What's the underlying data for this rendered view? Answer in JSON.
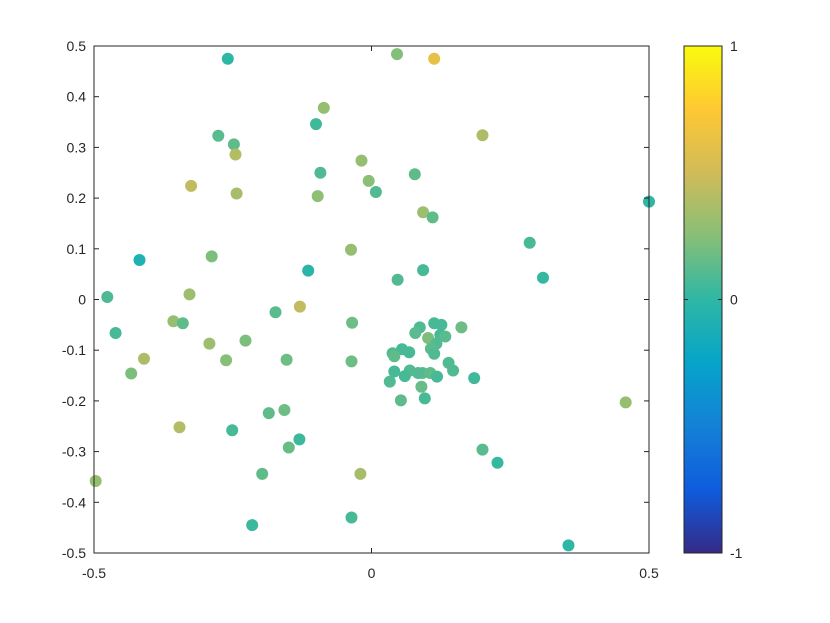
{
  "chart_data": {
    "type": "scatter",
    "title": "",
    "xlabel": "",
    "ylabel": "",
    "xlim": [
      -0.5,
      0.5
    ],
    "ylim": [
      -0.5,
      0.5
    ],
    "xticks": [
      "-0.5",
      "0",
      "0.5"
    ],
    "yticks": [
      "0.5",
      "0.4",
      "0.3",
      "0.2",
      "0.1",
      "0",
      "-0.1",
      "-0.2",
      "-0.3",
      "-0.4",
      "-0.5"
    ],
    "grid": false,
    "box": true,
    "colormap": "parula",
    "colorbar": {
      "limits": [
        -1,
        1
      ],
      "ticks": [
        1,
        0,
        -1
      ],
      "tick_labels": [
        "1",
        "0",
        "-1"
      ],
      "colors": [
        "#352a87",
        "#0f5cdd",
        "#1481d6",
        "#06a4ca",
        "#2eb7a4",
        "#87bf77",
        "#d1bb59",
        "#fec832",
        "#f9fb0e"
      ]
    },
    "points": [
      {
        "x": -0.259,
        "y": 0.475,
        "c": 0.0
      },
      {
        "x": 0.046,
        "y": 0.484,
        "c": 0.24
      },
      {
        "x": 0.113,
        "y": 0.475,
        "c": 0.62
      },
      {
        "x": -0.086,
        "y": 0.378,
        "c": 0.3
      },
      {
        "x": -0.1,
        "y": 0.346,
        "c": 0.05
      },
      {
        "x": 0.2,
        "y": 0.324,
        "c": 0.38
      },
      {
        "x": -0.276,
        "y": 0.323,
        "c": 0.12
      },
      {
        "x": -0.248,
        "y": 0.306,
        "c": 0.14
      },
      {
        "x": -0.245,
        "y": 0.286,
        "c": 0.4
      },
      {
        "x": -0.018,
        "y": 0.274,
        "c": 0.3
      },
      {
        "x": -0.092,
        "y": 0.25,
        "c": 0.1
      },
      {
        "x": 0.078,
        "y": 0.247,
        "c": 0.14
      },
      {
        "x": -0.005,
        "y": 0.234,
        "c": 0.26
      },
      {
        "x": -0.325,
        "y": 0.224,
        "c": 0.45
      },
      {
        "x": 0.008,
        "y": 0.212,
        "c": 0.1
      },
      {
        "x": -0.243,
        "y": 0.209,
        "c": 0.36
      },
      {
        "x": -0.097,
        "y": 0.204,
        "c": 0.28
      },
      {
        "x": 0.5,
        "y": 0.193,
        "c": 0.0
      },
      {
        "x": 0.093,
        "y": 0.172,
        "c": 0.32
      },
      {
        "x": 0.11,
        "y": 0.162,
        "c": 0.14
      },
      {
        "x": 0.285,
        "y": 0.112,
        "c": 0.07
      },
      {
        "x": -0.037,
        "y": 0.098,
        "c": 0.3
      },
      {
        "x": -0.418,
        "y": 0.078,
        "c": -0.08
      },
      {
        "x": -0.288,
        "y": 0.085,
        "c": 0.22
      },
      {
        "x": 0.093,
        "y": 0.058,
        "c": 0.07
      },
      {
        "x": -0.114,
        "y": 0.057,
        "c": -0.02
      },
      {
        "x": 0.047,
        "y": 0.039,
        "c": 0.1
      },
      {
        "x": 0.309,
        "y": 0.043,
        "c": 0.02
      },
      {
        "x": -0.476,
        "y": 0.005,
        "c": 0.09
      },
      {
        "x": -0.328,
        "y": 0.01,
        "c": 0.32
      },
      {
        "x": -0.129,
        "y": -0.014,
        "c": 0.45
      },
      {
        "x": -0.173,
        "y": -0.025,
        "c": 0.12
      },
      {
        "x": -0.357,
        "y": -0.043,
        "c": 0.3
      },
      {
        "x": -0.34,
        "y": -0.047,
        "c": 0.14
      },
      {
        "x": -0.035,
        "y": -0.046,
        "c": 0.18
      },
      {
        "x": 0.113,
        "y": -0.047,
        "c": 0.07
      },
      {
        "x": 0.126,
        "y": -0.05,
        "c": 0.07
      },
      {
        "x": 0.162,
        "y": -0.055,
        "c": 0.18
      },
      {
        "x": 0.087,
        "y": -0.055,
        "c": 0.09
      },
      {
        "x": -0.461,
        "y": -0.066,
        "c": 0.07
      },
      {
        "x": 0.079,
        "y": -0.066,
        "c": 0.12
      },
      {
        "x": 0.124,
        "y": -0.07,
        "c": 0.07
      },
      {
        "x": 0.133,
        "y": -0.073,
        "c": 0.12
      },
      {
        "x": 0.102,
        "y": -0.076,
        "c": 0.22
      },
      {
        "x": -0.227,
        "y": -0.081,
        "c": 0.22
      },
      {
        "x": 0.117,
        "y": -0.087,
        "c": 0.1
      },
      {
        "x": -0.292,
        "y": -0.087,
        "c": 0.32
      },
      {
        "x": 0.107,
        "y": -0.097,
        "c": 0.12
      },
      {
        "x": 0.055,
        "y": -0.098,
        "c": 0.07
      },
      {
        "x": 0.068,
        "y": -0.104,
        "c": 0.07
      },
      {
        "x": 0.113,
        "y": -0.107,
        "c": 0.1
      },
      {
        "x": 0.038,
        "y": -0.106,
        "c": 0.1
      },
      {
        "x": 0.041,
        "y": -0.112,
        "c": 0.14
      },
      {
        "x": -0.41,
        "y": -0.117,
        "c": 0.38
      },
      {
        "x": -0.262,
        "y": -0.12,
        "c": 0.25
      },
      {
        "x": -0.153,
        "y": -0.119,
        "c": 0.18
      },
      {
        "x": -0.036,
        "y": -0.122,
        "c": 0.18
      },
      {
        "x": 0.139,
        "y": -0.125,
        "c": 0.1
      },
      {
        "x": 0.041,
        "y": -0.142,
        "c": 0.07
      },
      {
        "x": 0.069,
        "y": -0.14,
        "c": 0.1
      },
      {
        "x": 0.147,
        "y": -0.14,
        "c": 0.1
      },
      {
        "x": 0.092,
        "y": -0.145,
        "c": 0.12
      },
      {
        "x": 0.106,
        "y": -0.145,
        "c": 0.14
      },
      {
        "x": 0.084,
        "y": -0.145,
        "c": 0.1
      },
      {
        "x": -0.433,
        "y": -0.146,
        "c": 0.22
      },
      {
        "x": 0.06,
        "y": -0.151,
        "c": 0.07
      },
      {
        "x": 0.118,
        "y": -0.152,
        "c": 0.07
      },
      {
        "x": 0.185,
        "y": -0.155,
        "c": 0.05
      },
      {
        "x": 0.033,
        "y": -0.162,
        "c": 0.1
      },
      {
        "x": 0.09,
        "y": -0.172,
        "c": 0.16
      },
      {
        "x": 0.053,
        "y": -0.199,
        "c": 0.14
      },
      {
        "x": 0.096,
        "y": -0.195,
        "c": 0.07
      },
      {
        "x": 0.458,
        "y": -0.203,
        "c": 0.3
      },
      {
        "x": -0.157,
        "y": -0.218,
        "c": 0.18
      },
      {
        "x": -0.185,
        "y": -0.224,
        "c": 0.14
      },
      {
        "x": -0.346,
        "y": -0.252,
        "c": 0.4
      },
      {
        "x": -0.251,
        "y": -0.258,
        "c": 0.07
      },
      {
        "x": -0.13,
        "y": -0.276,
        "c": 0.04
      },
      {
        "x": -0.149,
        "y": -0.292,
        "c": 0.16
      },
      {
        "x": 0.2,
        "y": -0.296,
        "c": 0.12
      },
      {
        "x": 0.227,
        "y": -0.322,
        "c": 0.02
      },
      {
        "x": -0.197,
        "y": -0.344,
        "c": 0.14
      },
      {
        "x": -0.02,
        "y": -0.344,
        "c": 0.36
      },
      {
        "x": -0.497,
        "y": -0.358,
        "c": 0.3
      },
      {
        "x": -0.036,
        "y": -0.43,
        "c": 0.07
      },
      {
        "x": -0.215,
        "y": -0.445,
        "c": 0.04
      },
      {
        "x": 0.355,
        "y": -0.485,
        "c": 0.0
      }
    ]
  }
}
